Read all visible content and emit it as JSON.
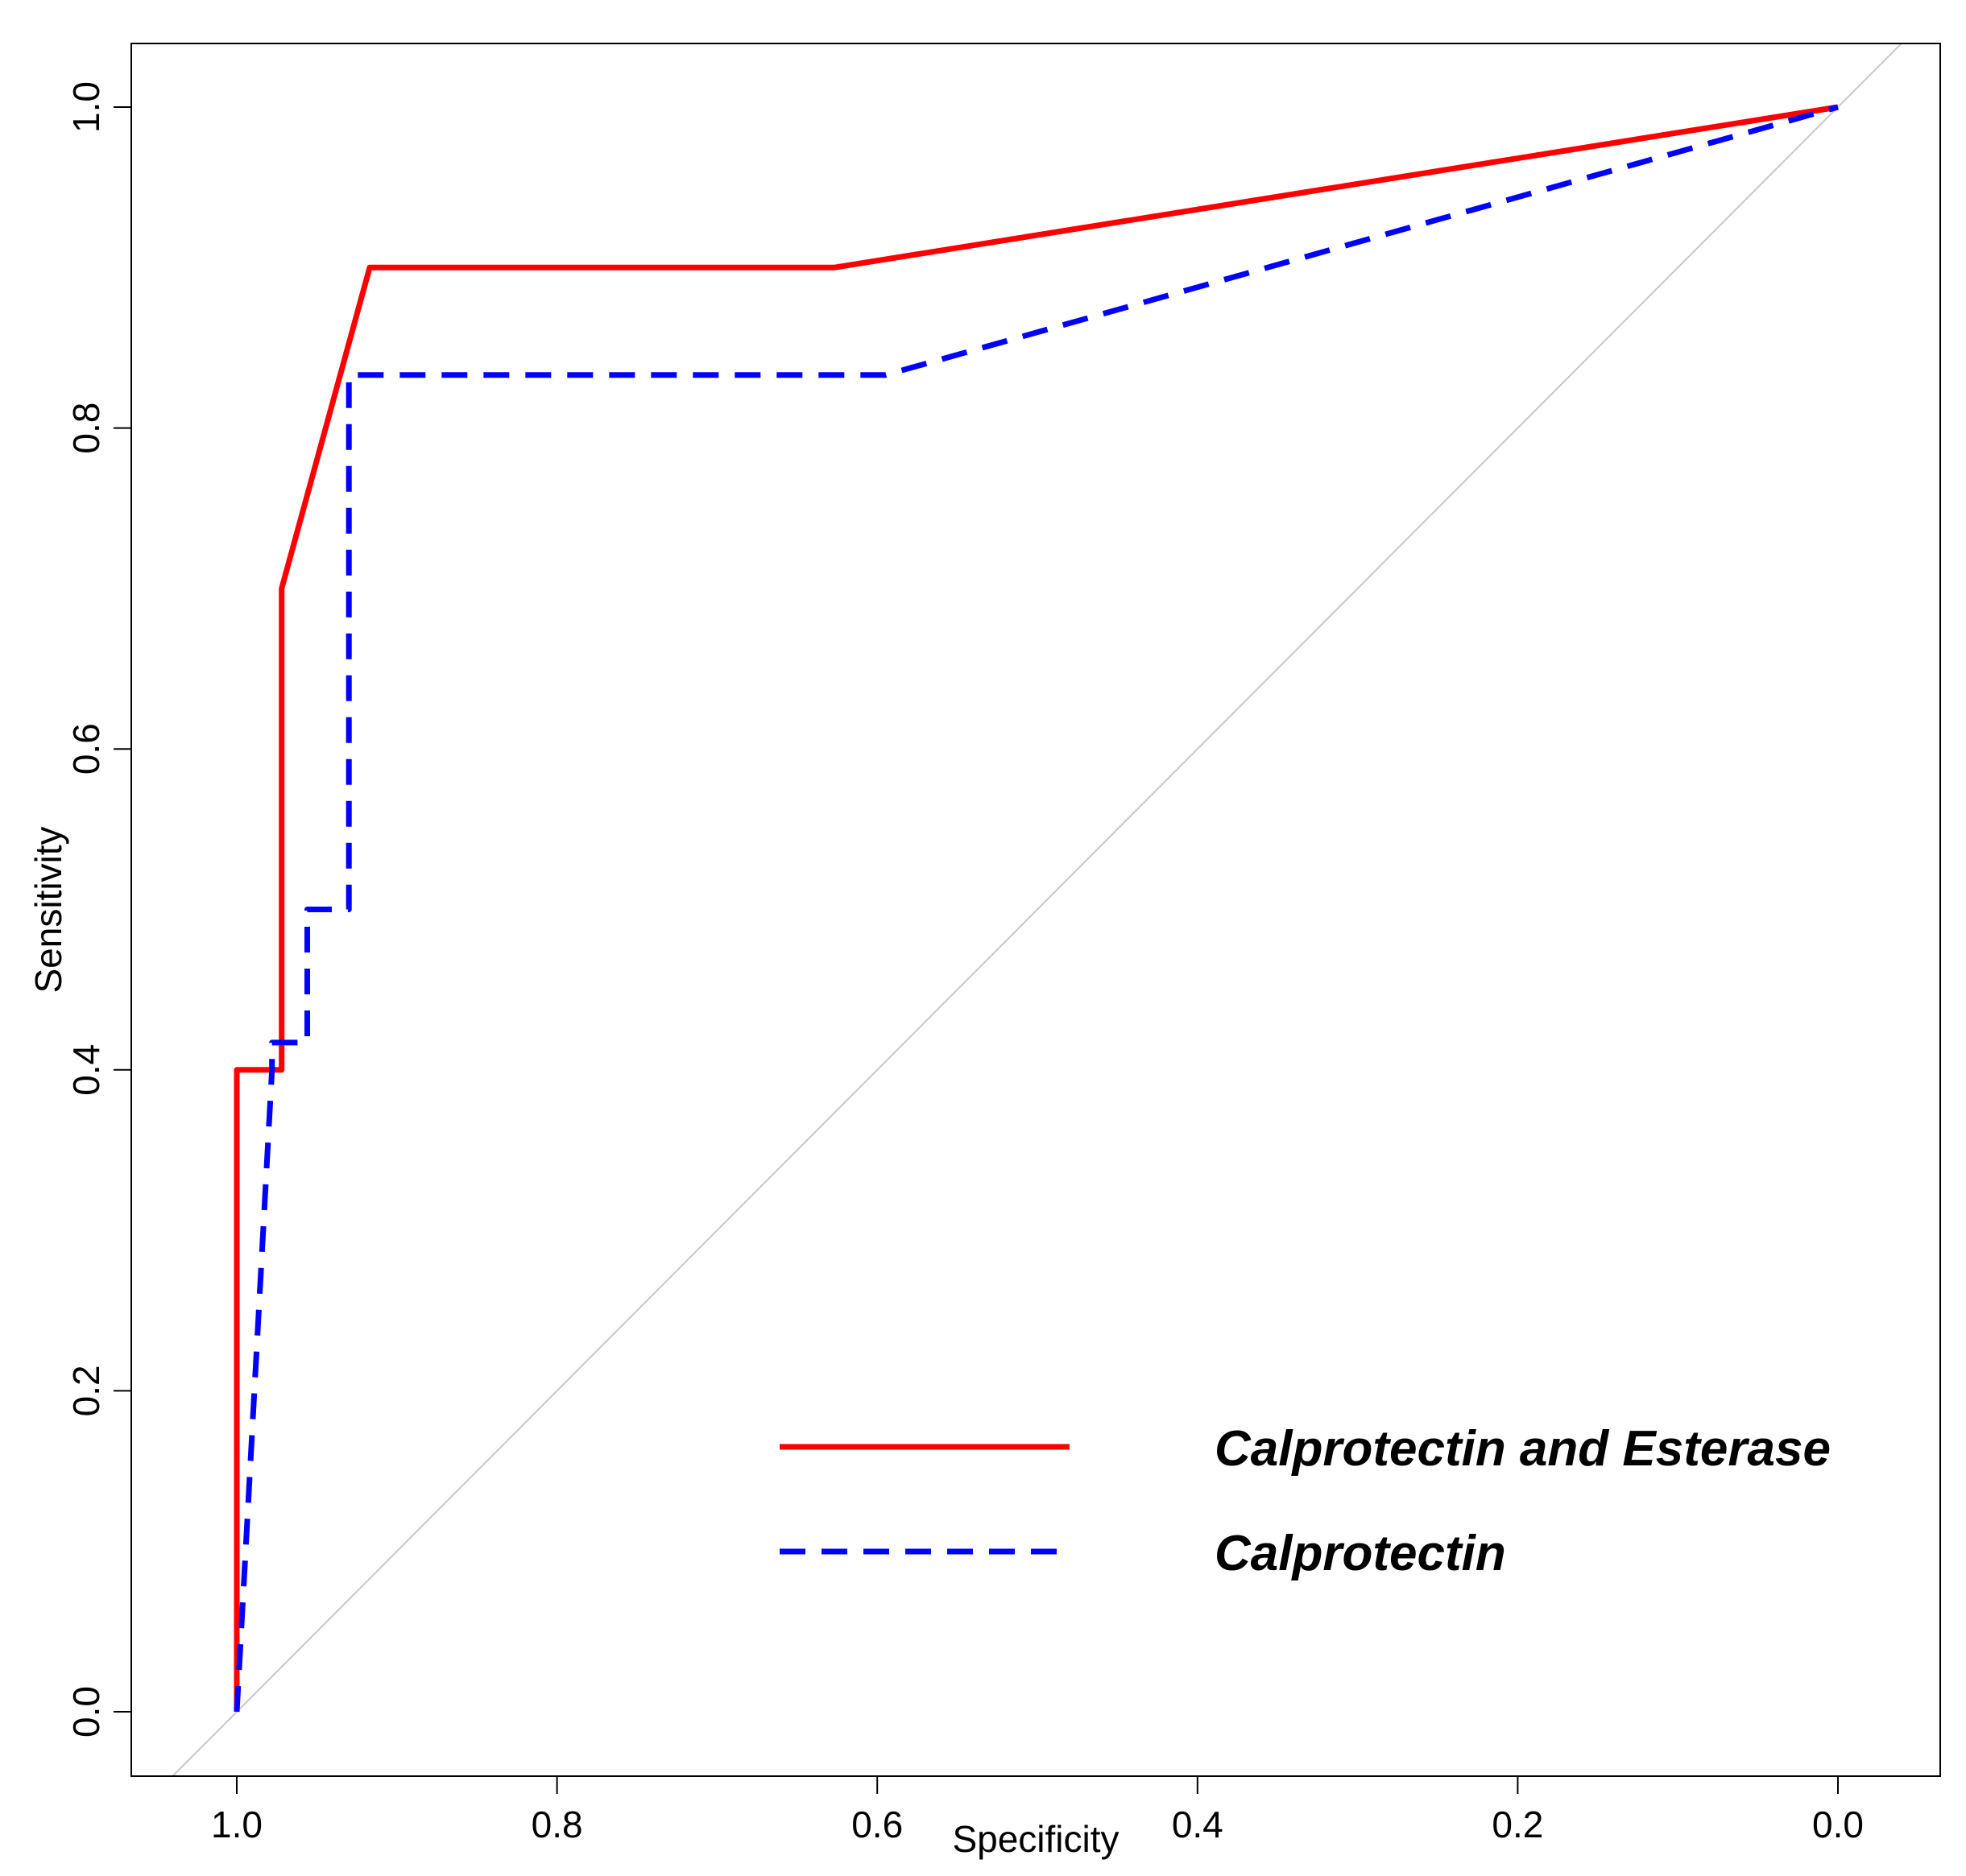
{
  "chart_data": {
    "type": "line",
    "title": "",
    "xlabel": "Specificity",
    "ylabel": "Sensitivity",
    "xlim": [
      1.0,
      0.0
    ],
    "ylim": [
      0.0,
      1.0
    ],
    "x_reversed": true,
    "grid": false,
    "x_ticks": [
      1.0,
      0.8,
      0.6,
      0.4,
      0.2,
      0.0
    ],
    "x_tick_labels": [
      "1.0",
      "0.8",
      "0.6",
      "0.4",
      "0.2",
      "0.0"
    ],
    "y_ticks": [
      0.0,
      0.2,
      0.4,
      0.6,
      0.8,
      1.0
    ],
    "y_tick_labels": [
      "0.0",
      "0.2",
      "0.4",
      "0.6",
      "0.8",
      "1.0"
    ],
    "reference_line": {
      "name": "chance diagonal",
      "color": "#c8c8c8",
      "points": [
        [
          1.0,
          0.0
        ],
        [
          0.0,
          1.0
        ]
      ]
    },
    "legend_position": "bottom-right",
    "series": [
      {
        "name": "Calprotectin and Esterase",
        "color": "#ff0000",
        "dash": "solid",
        "specificity": [
          1.0,
          1.0,
          0.972,
          0.972,
          0.917,
          0.627,
          0.0
        ],
        "sensitivity": [
          0.0,
          0.4,
          0.4,
          0.7,
          0.9,
          0.9,
          1.0
        ]
      },
      {
        "name": "Calprotectin",
        "color": "#0000ff",
        "dash": "dashed",
        "specificity": [
          1.0,
          0.978,
          0.978,
          0.956,
          0.956,
          0.93,
          0.93,
          0.595,
          0.0
        ],
        "sensitivity": [
          0.0,
          0.4,
          0.417,
          0.417,
          0.5,
          0.5,
          0.833,
          0.833,
          1.0
        ]
      }
    ]
  }
}
